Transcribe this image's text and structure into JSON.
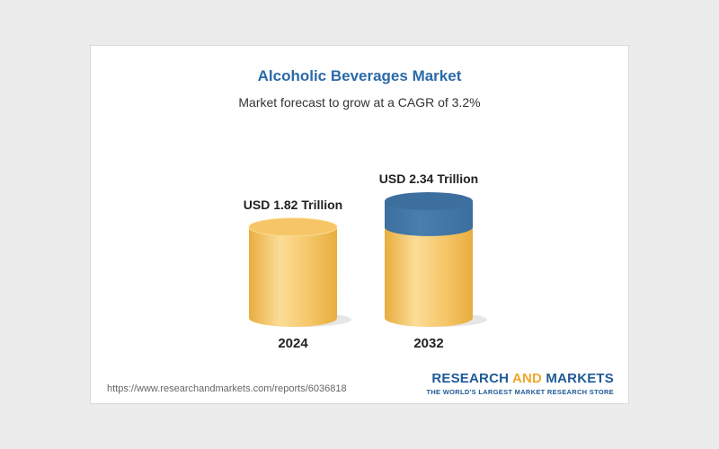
{
  "colors": {
    "title": "#2a6aa8",
    "bar_fill": "#f5c566",
    "bar_light": "#fbdd97",
    "bar_shadow": "#e8ad3f",
    "growth_fill": "#4a7eae",
    "growth_top": "#3c6f9e",
    "brand_blue": "#1f5a96",
    "brand_orange": "#f0a72c"
  },
  "chart_data": {
    "type": "bar",
    "title": "Alcoholic Beverages Market",
    "subtitle": "Market forecast to grow at a CAGR of 3.2%",
    "categories": [
      "2024",
      "2032"
    ],
    "values": [
      1.82,
      2.34
    ],
    "value_labels": [
      "USD 1.82 Trillion",
      "USD 2.34 Trillion"
    ],
    "unit": "USD Trillion",
    "ylim": [
      0,
      2.34
    ],
    "grid": false,
    "legend": "none"
  },
  "footer": {
    "source_url": "https://www.researchandmarkets.com/reports/6036818",
    "brand_part1": "RESEARCH ",
    "brand_part2": "AND",
    "brand_part3": " MARKETS",
    "brand_tagline": "THE WORLD'S LARGEST MARKET RESEARCH STORE"
  }
}
